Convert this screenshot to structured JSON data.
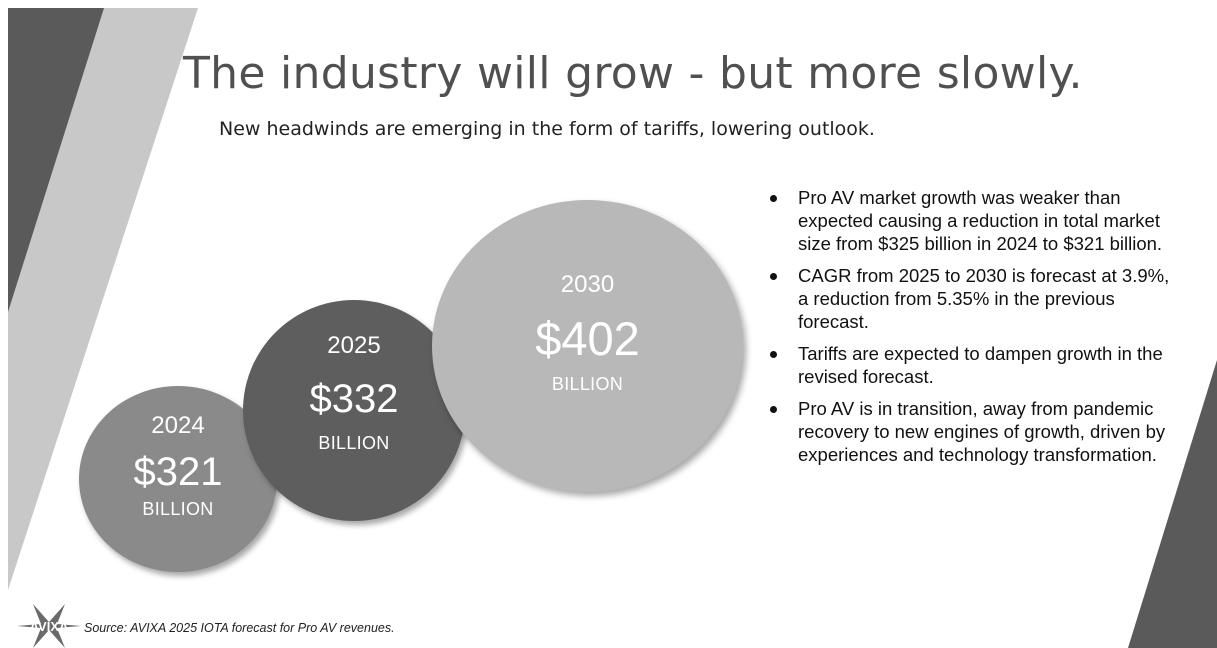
{
  "header": {
    "title": "The industry will grow - but more slowly.",
    "subtitle": "New headwinds are emerging in the form of tariffs, lowering outlook."
  },
  "bubbles": [
    {
      "year": "2024",
      "amount": "$321",
      "unit": "BILLION"
    },
    {
      "year": "2025",
      "amount": "$332",
      "unit": "BILLION"
    },
    {
      "year": "2030",
      "amount": "$402",
      "unit": "BILLION"
    }
  ],
  "bullets": [
    "Pro AV market growth was weaker than expected causing a reduction in total market size from $325 billion in 2024 to $321 billion.",
    "CAGR from 2025 to 2030 is forecast at 3.9%, a reduction from 5.35% in the previous forecast.",
    "Tariffs are expected to dampen growth in the revised forecast.",
    "Pro AV is in transition, away from pandemic recovery to new engines of growth, driven by experiences and technology transformation."
  ],
  "footer": {
    "logo_text": "AVIXA",
    "source": "Source: AVIXA 2025 IOTA forecast for Pro AV revenues."
  },
  "colors": {
    "bubble_2024": "#8a8a8a",
    "bubble_2025": "#5e5e5e",
    "bubble_2030": "#b8b8b8",
    "stripe_dark": "#5a5a5a",
    "stripe_light": "#c8c8c8"
  }
}
